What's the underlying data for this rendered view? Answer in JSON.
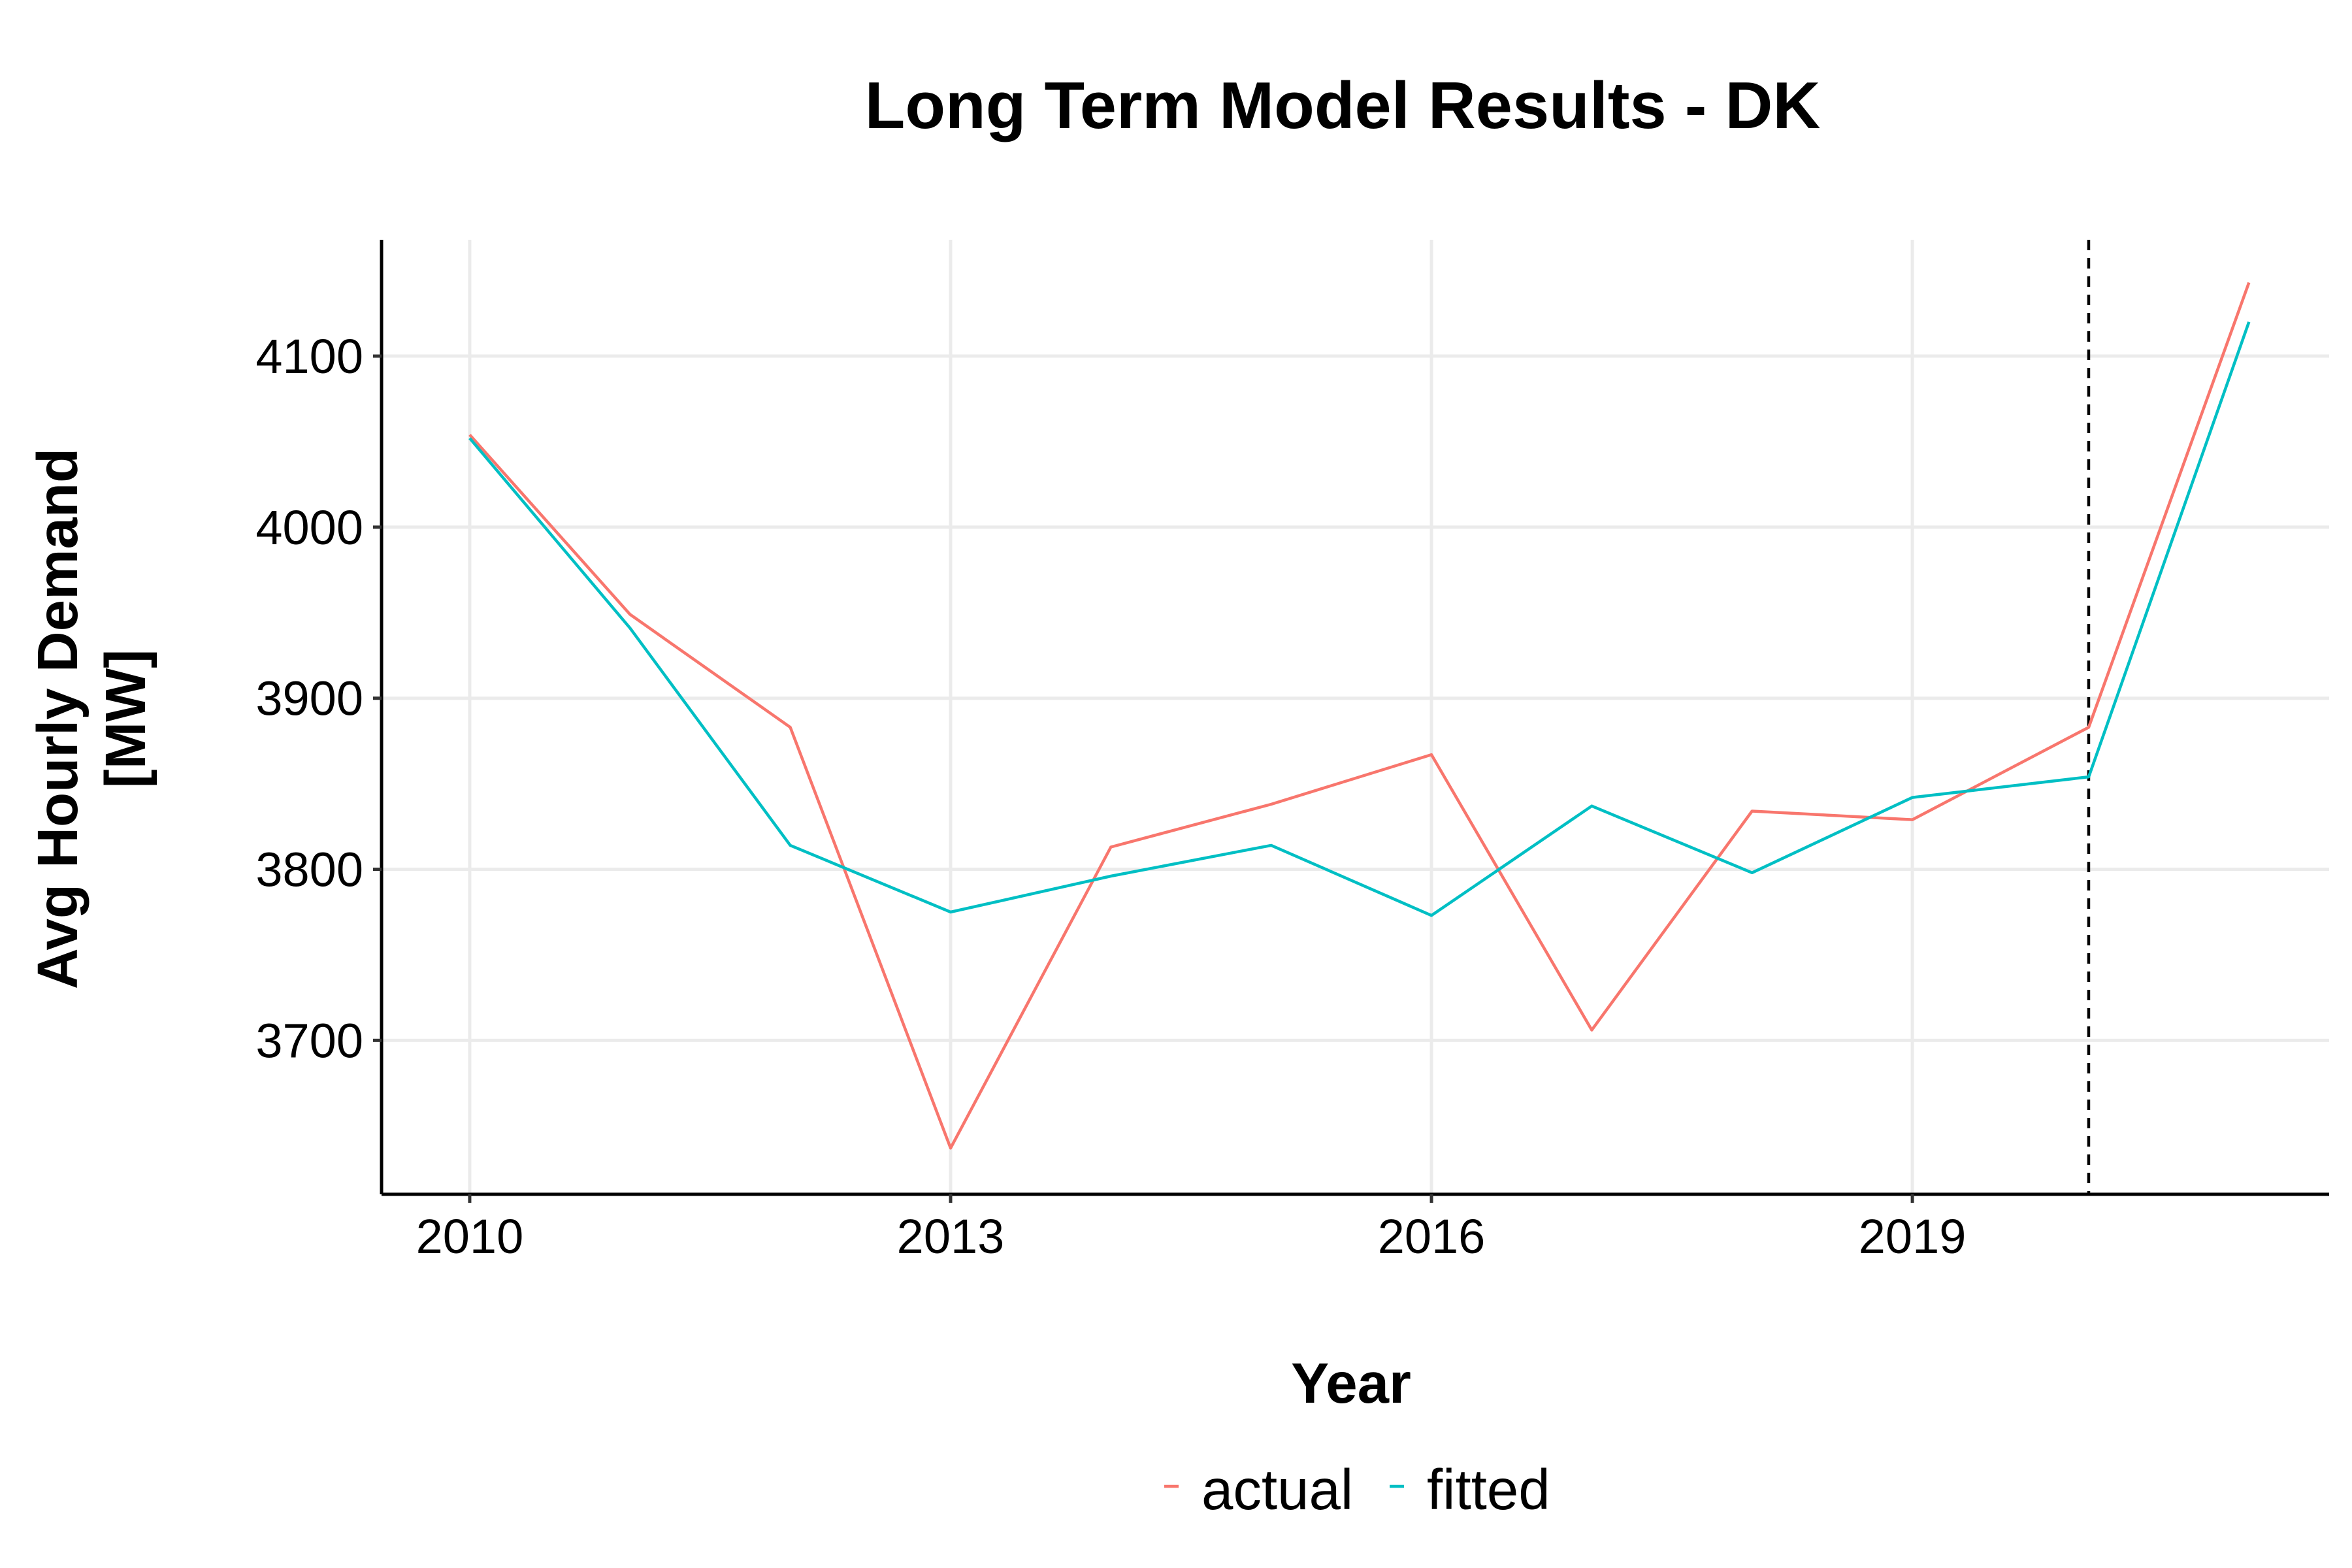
{
  "chart_data": {
    "type": "line",
    "title": "Long Term Model Results - DK",
    "xlabel": "Year",
    "ylabel_lines": [
      "Avg Hourly Demand",
      "[MW]"
    ],
    "xlim": [
      2009.45,
      2021.6
    ],
    "ylim": [
      3610,
      4168
    ],
    "x_ticks": [
      2010,
      2013,
      2016,
      2019
    ],
    "y_ticks": [
      3700,
      3800,
      3900,
      4000,
      4100
    ],
    "grid": true,
    "legend_position": "bottom",
    "vline": {
      "x": 2020.1,
      "style": "dashed",
      "color": "#000000"
    },
    "x": [
      2010,
      2011,
      2012,
      2013,
      2014,
      2015,
      2016,
      2017,
      2018,
      2019,
      2020.1,
      2021.1
    ],
    "series": [
      {
        "name": "actual",
        "color": "#F8766D",
        "values": [
          4054,
          3949,
          3883,
          3637,
          3813,
          3838,
          3867,
          3706,
          3834,
          3829,
          3883,
          4143
        ]
      },
      {
        "name": "fitted",
        "color": "#00BFC4",
        "values": [
          4052,
          3941,
          3814,
          3775,
          3796,
          3814,
          3773,
          3837,
          3798,
          3842,
          3854,
          4120
        ]
      }
    ]
  }
}
